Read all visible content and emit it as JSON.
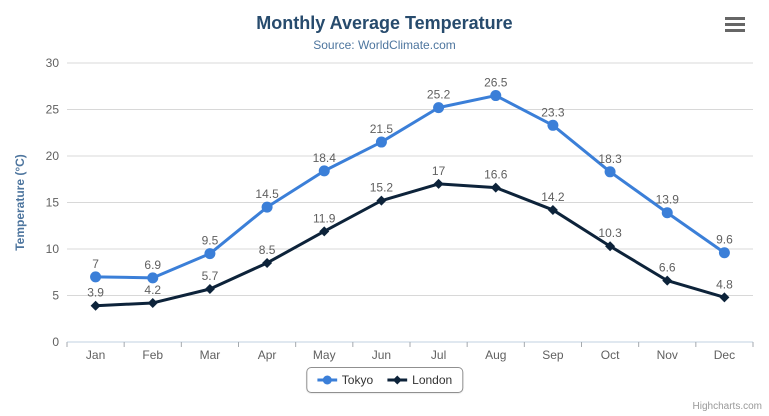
{
  "chart": {
    "title": "Monthly Average Temperature",
    "subtitle": "Source: WorldClimate.com",
    "credits": "Highcharts.com",
    "menu_icon": "hamburger-menu-icon"
  },
  "chart_data": {
    "type": "line",
    "title": "Monthly Average Temperature",
    "subtitle": "Source: WorldClimate.com",
    "categories": [
      "Jan",
      "Feb",
      "Mar",
      "Apr",
      "May",
      "Jun",
      "Jul",
      "Aug",
      "Sep",
      "Oct",
      "Nov",
      "Dec"
    ],
    "series": [
      {
        "name": "Tokyo",
        "color": "#3b7fd8",
        "marker": "circle",
        "values": [
          7.0,
          6.9,
          9.5,
          14.5,
          18.4,
          21.5,
          25.2,
          26.5,
          23.3,
          18.3,
          13.9,
          9.6
        ]
      },
      {
        "name": "London",
        "color": "#0d233a",
        "marker": "diamond",
        "values": [
          3.9,
          4.2,
          5.7,
          8.5,
          11.9,
          15.2,
          17.0,
          16.6,
          14.2,
          10.3,
          6.6,
          4.8
        ]
      }
    ],
    "xlabel": "",
    "ylabel": "Temperature (°C)",
    "ylim": [
      0,
      30
    ],
    "yticks": [
      0,
      5,
      10,
      15,
      20,
      25,
      30
    ],
    "grid": true,
    "legend_position": "bottom",
    "colors": {
      "grid_line": "#d8d8d8",
      "axis_line": "#c0d0e0",
      "tick_mark": "#a5aaaf",
      "axis_label": "#606060",
      "axis_title": "#4d759e",
      "data_label": "#606060",
      "title": "#274b6d",
      "subtitle": "#4d759e",
      "legend_text": "#333333",
      "credits": "#999999"
    }
  }
}
